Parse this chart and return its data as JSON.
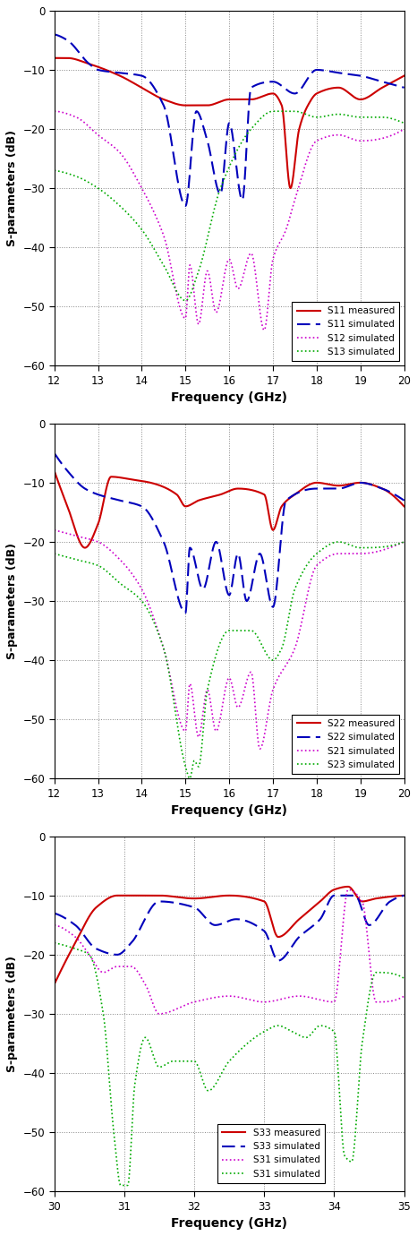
{
  "plot1": {
    "xmin": 12,
    "xmax": 20,
    "ymin": -60,
    "ymax": 0,
    "yticks": [
      0,
      -10,
      -20,
      -30,
      -40,
      -50,
      -60
    ],
    "xticks": [
      12,
      13,
      14,
      15,
      16,
      17,
      18,
      19,
      20
    ],
    "xlabel": "Frequency (GHz)",
    "ylabel": "S-parameters (dB)",
    "legend": [
      "S11 measured",
      "S11 simulated",
      "S12 simulated",
      "S13 simulated"
    ],
    "colors": [
      "#cc0000",
      "#0000bb",
      "#cc00cc",
      "#00aa00"
    ],
    "linewidths": [
      1.5,
      1.5,
      1.2,
      1.2
    ]
  },
  "plot2": {
    "xmin": 12,
    "xmax": 20,
    "ymin": -60,
    "ymax": 0,
    "yticks": [
      0,
      -10,
      -20,
      -30,
      -40,
      -50,
      -60
    ],
    "xticks": [
      12,
      13,
      14,
      15,
      16,
      17,
      18,
      19,
      20
    ],
    "xlabel": "Frequency (GHz)",
    "ylabel": "S-parameters (dB)",
    "legend": [
      "S22 measured",
      "S22 simulated",
      "S21 simulated",
      "S23 simulated"
    ],
    "colors": [
      "#cc0000",
      "#0000bb",
      "#cc00cc",
      "#00aa00"
    ],
    "linewidths": [
      1.5,
      1.5,
      1.2,
      1.2
    ]
  },
  "plot3": {
    "xmin": 30,
    "xmax": 35,
    "ymin": -60,
    "ymax": 0,
    "yticks": [
      0,
      -10,
      -20,
      -30,
      -40,
      -50,
      -60
    ],
    "xticks": [
      30,
      31,
      32,
      33,
      34,
      35
    ],
    "xlabel": "Frequency (GHz)",
    "ylabel": "S-parameters (dB)",
    "legend": [
      "S33 measured",
      "S33 simulated",
      "S31 simulated",
      "S31 simulated"
    ],
    "colors": [
      "#cc0000",
      "#0000bb",
      "#cc00cc",
      "#00aa00"
    ],
    "linewidths": [
      1.5,
      1.5,
      1.2,
      1.2
    ]
  }
}
